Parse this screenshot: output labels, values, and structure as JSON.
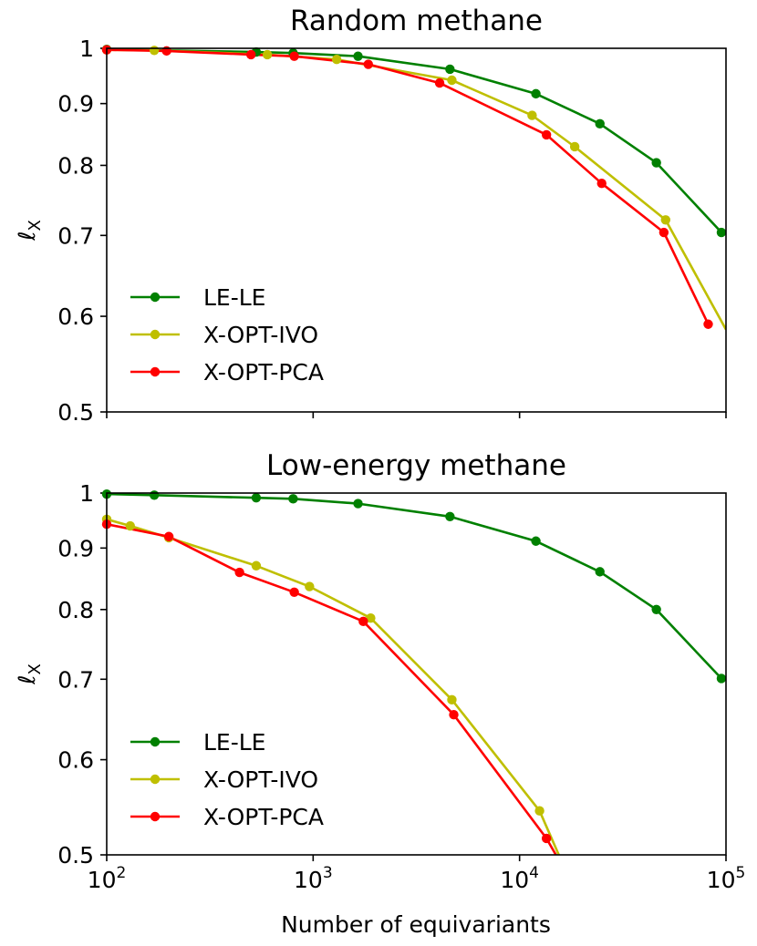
{
  "figure": {
    "xlabel": "Number of equivariants",
    "x_tick_labels": [
      {
        "base": "10",
        "exp": "2",
        "value": 100
      },
      {
        "base": "10",
        "exp": "3",
        "value": 1000
      },
      {
        "base": "10",
        "exp": "4",
        "value": 10000
      },
      {
        "base": "10",
        "exp": "5",
        "value": 100000
      }
    ]
  },
  "chart_data": [
    {
      "type": "line",
      "title": "Random methane",
      "xlabel": "",
      "ylabel": "ℓX",
      "xscale": "log",
      "yscale": "log",
      "xlim": [
        100,
        100000
      ],
      "ylim": [
        0.5,
        1.0
      ],
      "y_ticks": [
        0.5,
        0.6,
        0.7,
        0.8,
        0.9,
        1.0
      ],
      "y_tick_labels": [
        "0.5",
        "0.6",
        "0.7",
        "0.8",
        "0.9",
        "1"
      ],
      "legend_position": "lower-left",
      "series": [
        {
          "name": "LE-LE",
          "color": "#008000",
          "x": [
            100,
            530,
            800,
            1650,
            4600,
            12000,
            24500,
            46000,
            95000
          ],
          "y": [
            0.998,
            0.993,
            0.991,
            0.985,
            0.961,
            0.917,
            0.866,
            0.804,
            0.704
          ]
        },
        {
          "name": "X-OPT-IVO",
          "color": "#bfbf00",
          "x": [
            100,
            170,
            600,
            1300,
            4700,
            11500,
            18500,
            51000,
            100000
          ],
          "y": [
            0.997,
            0.996,
            0.988,
            0.979,
            0.941,
            0.88,
            0.829,
            0.721,
            0.585
          ]
        },
        {
          "name": "X-OPT-PCA",
          "color": "#ff0000",
          "x": [
            100,
            195,
            500,
            810,
            1850,
            4100,
            13500,
            25000,
            50000,
            82000
          ],
          "y": [
            0.997,
            0.995,
            0.988,
            0.985,
            0.97,
            0.936,
            0.848,
            0.773,
            0.704,
            0.591
          ]
        }
      ]
    },
    {
      "type": "line",
      "title": "Low-energy methane",
      "xlabel": "Number of equivariants",
      "ylabel": "ℓX",
      "xscale": "log",
      "yscale": "log",
      "xlim": [
        100,
        100000
      ],
      "ylim": [
        0.5,
        1.0
      ],
      "y_ticks": [
        0.5,
        0.6,
        0.7,
        0.8,
        0.9,
        1.0
      ],
      "y_tick_labels": [
        "0.5",
        "0.6",
        "0.7",
        "0.8",
        "0.9",
        "1"
      ],
      "legend_position": "lower-left",
      "series": [
        {
          "name": "LE-LE",
          "color": "#008000",
          "x": [
            100,
            170,
            530,
            800,
            1650,
            4600,
            12000,
            24500,
            46000,
            95000
          ],
          "y": [
            0.998,
            0.996,
            0.991,
            0.989,
            0.98,
            0.956,
            0.912,
            0.86,
            0.8,
            0.701
          ]
        },
        {
          "name": "X-OPT-IVO",
          "color": "#bfbf00",
          "x": [
            100,
            130,
            200,
            530,
            960,
            1900,
            4700,
            12500,
            15500
          ],
          "y": [
            0.951,
            0.939,
            0.918,
            0.87,
            0.836,
            0.787,
            0.673,
            0.544,
            0.5
          ]
        },
        {
          "name": "X-OPT-PCA",
          "color": "#ff0000",
          "x": [
            100,
            200,
            440,
            810,
            1750,
            4800,
            13500,
            15000
          ],
          "y": [
            0.942,
            0.92,
            0.859,
            0.827,
            0.782,
            0.654,
            0.516,
            0.5
          ]
        }
      ],
      "markers_hidden_at_axis_edge": true
    }
  ]
}
